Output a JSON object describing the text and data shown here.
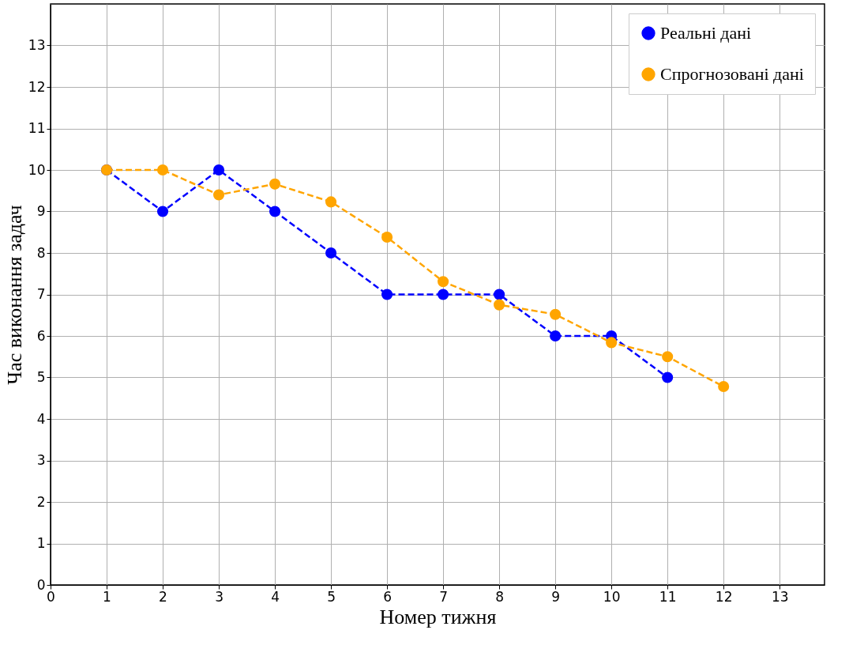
{
  "chart_data": {
    "type": "line",
    "xlabel": "Номер тижня",
    "ylabel": "Час виконання задач",
    "series": [
      {
        "name": "Реальні дані",
        "color": "#0000ff",
        "x": [
          1,
          2,
          3,
          4,
          5,
          6,
          7,
          8,
          9,
          10,
          11
        ],
        "values": [
          10,
          9,
          10,
          9,
          8,
          7,
          7,
          7,
          6,
          6,
          5
        ]
      },
      {
        "name": "Спрогнозовані дані",
        "color": "#ffa500",
        "x": [
          1,
          2,
          3,
          4,
          5,
          6,
          7,
          8,
          9,
          10,
          11,
          12
        ],
        "values": [
          10,
          10,
          9.4,
          9.66,
          9.23,
          8.38,
          7.31,
          6.75,
          6.52,
          5.84,
          5.5,
          4.78
        ]
      }
    ],
    "xlim": [
      0,
      13.8
    ],
    "ylim": [
      0,
      14
    ],
    "xticks": [
      0,
      1,
      2,
      3,
      4,
      5,
      6,
      7,
      8,
      9,
      10,
      11,
      12,
      13
    ],
    "yticks": [
      0,
      1,
      2,
      3,
      4,
      5,
      6,
      7,
      8,
      9,
      10,
      11,
      12,
      13
    ],
    "grid": true,
    "legend": "top right",
    "marker": "circle",
    "line_style": "dashed"
  }
}
